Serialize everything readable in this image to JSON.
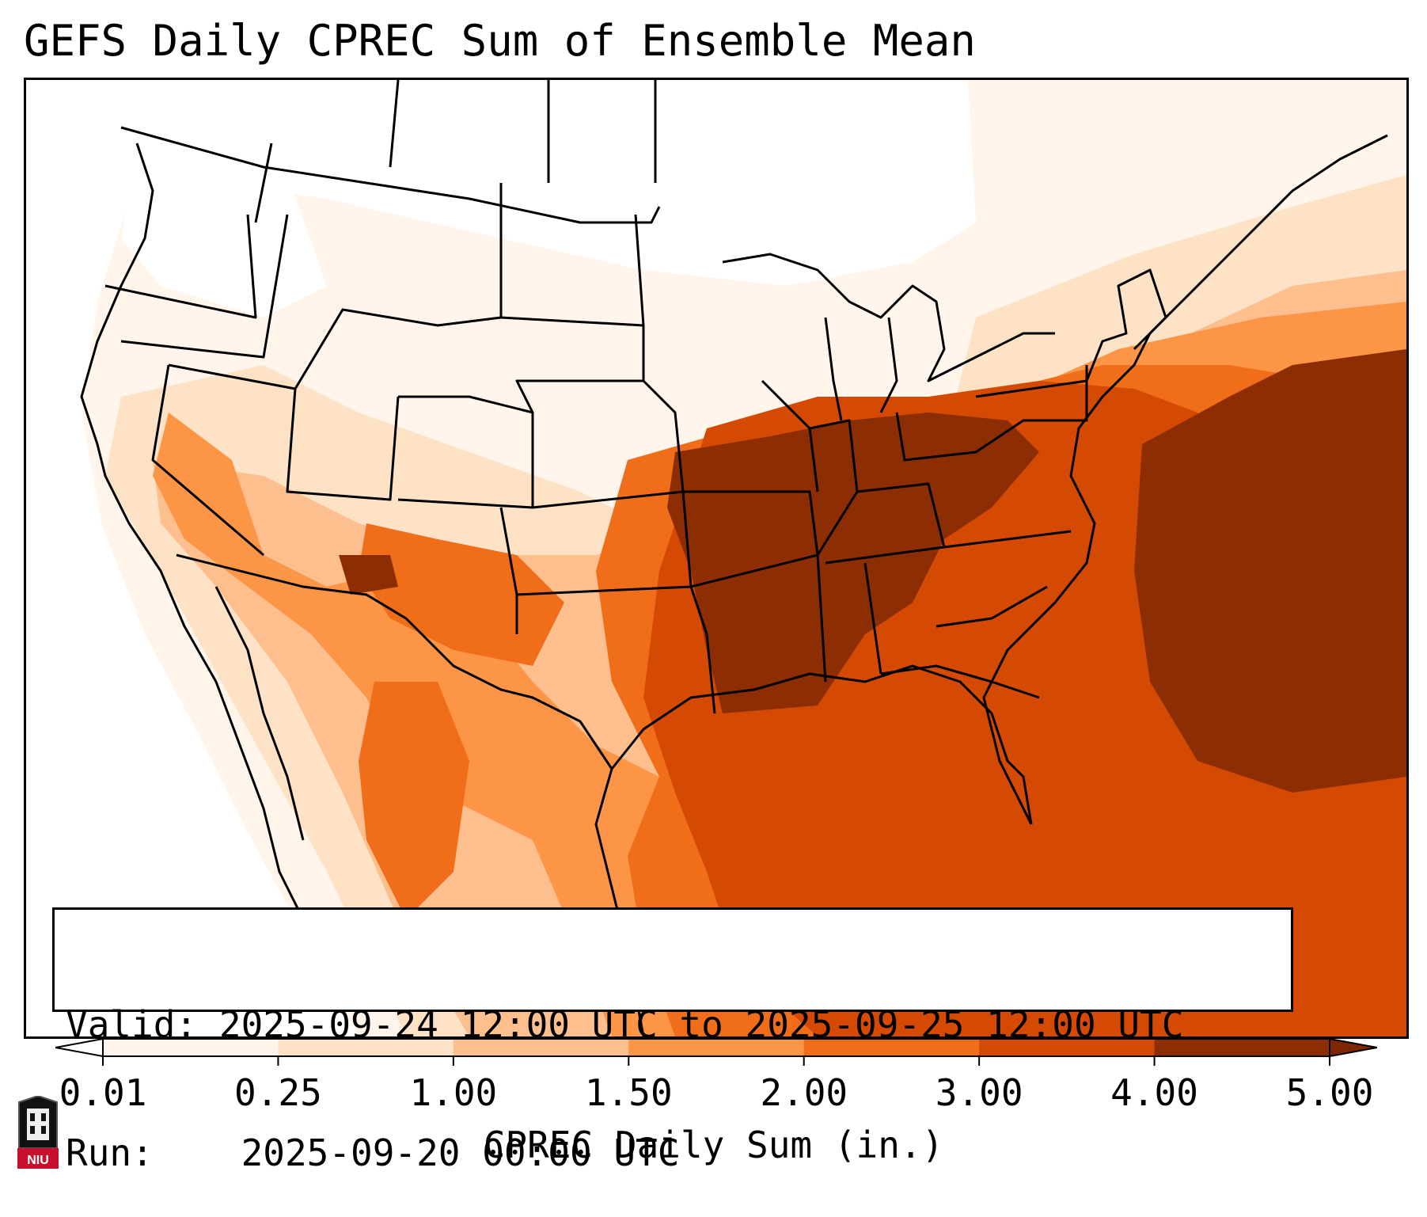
{
  "title": "GEFS Daily CPREC Sum of Ensemble Mean",
  "info_box": {
    "valid_label": "Valid:",
    "valid_value": "2025-09-24 12:00 UTC to 2025-09-25 12:00 UTC",
    "run_label": "Run:",
    "run_value": "2025-09-20 00:00 UTC"
  },
  "colorbar": {
    "label": "CPREC Daily Sum (in.)",
    "ticks": [
      "0.01",
      "0.25",
      "1.00",
      "1.50",
      "2.00",
      "3.00",
      "4.00",
      "5.00"
    ],
    "colors": [
      "#fff5eb",
      "#fde2c6",
      "#fdbf8e",
      "#fd9547",
      "#f06d1a",
      "#d44a02",
      "#8c2d04"
    ],
    "under_color": "#ffffff",
    "over_color": "#7f2704"
  },
  "map": {
    "projection": "Lambert Conformal",
    "region": "CONUS",
    "field": "CPREC daily sum",
    "max_regions": [
      "Mid-Mississippi Valley",
      "Tennessee Valley",
      "Western Atlantic"
    ]
  },
  "logo": {
    "name": "niu-logo",
    "text": "NIU"
  }
}
